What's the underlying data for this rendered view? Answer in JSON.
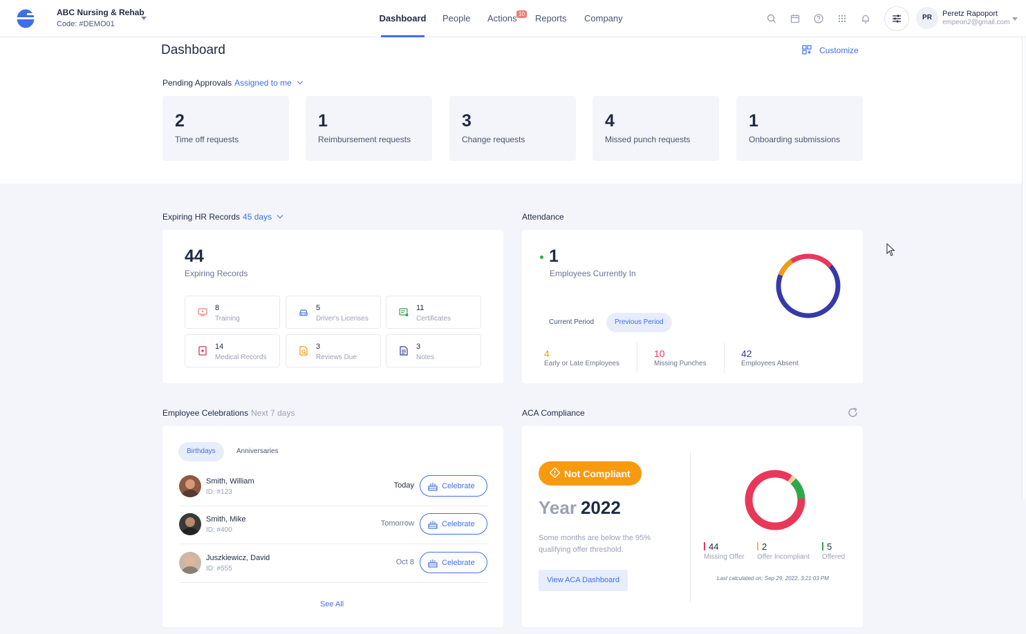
{
  "org": {
    "name": "ABC Nursing & Rehab",
    "code": "Code: #DEMO01"
  },
  "nav": [
    {
      "label": "Dashboard"
    },
    {
      "label": "People"
    },
    {
      "label": "Actions",
      "badge": "10"
    },
    {
      "label": "Reports"
    },
    {
      "label": "Company"
    }
  ],
  "top_icons": [
    "search-icon",
    "calendar-icon",
    "help-icon",
    "apps-grid-icon",
    "bell-icon",
    "settings-sliders-icon"
  ],
  "user": {
    "initials": "PR",
    "name": "Peretz Rapoport",
    "email": "empeon2@gmail.com"
  },
  "page": {
    "title": "Dashboard",
    "customize": "Customize"
  },
  "pending": {
    "label": "Pending Approvals",
    "filter": "Assigned to me",
    "cards": [
      {
        "num": "2",
        "label": "Time off requests"
      },
      {
        "num": "1",
        "label": "Reimbursement requests"
      },
      {
        "num": "3",
        "label": "Change requests"
      },
      {
        "num": "4",
        "label": "Missed punch requests"
      },
      {
        "num": "1",
        "label": "Onboarding submissions"
      }
    ]
  },
  "expiring": {
    "label": "Expiring HR Records",
    "filter": "45 days",
    "total": "44",
    "total_label": "Expiring Records",
    "tiles": [
      {
        "num": "8",
        "label": "Training",
        "icon": "training-icon"
      },
      {
        "num": "5",
        "label": "Driver's Licenses",
        "icon": "car-icon"
      },
      {
        "num": "11",
        "label": "Certificates",
        "icon": "certificate-icon"
      },
      {
        "num": "14",
        "label": "Medical Records",
        "icon": "medical-icon"
      },
      {
        "num": "3",
        "label": "Reviews Due",
        "icon": "review-icon"
      },
      {
        "num": "3",
        "label": "Notes",
        "icon": "notes-icon"
      }
    ]
  },
  "attendance": {
    "label": "Attendance",
    "current_in": "1",
    "current_in_label": "Employees Currently In",
    "tabs": [
      {
        "label": "Current Period"
      },
      {
        "label": "Previous Period"
      }
    ],
    "stats": [
      {
        "num": "4",
        "label": "Early or Late Employees",
        "color": "#f79a0e"
      },
      {
        "num": "10",
        "label": "Missing Punches",
        "color": "#e8385a"
      },
      {
        "num": "42",
        "label": "Employees Absent",
        "color": "#3639a8"
      }
    ]
  },
  "celebrations": {
    "label": "Employee Celebrations",
    "filter": "Next 7 days",
    "tabs": [
      {
        "label": "Birthdays"
      },
      {
        "label": "Anniversaries"
      }
    ],
    "rows": [
      {
        "name": "Smith, William",
        "id": "ID: #123",
        "when": "Today",
        "action": "Celebrate"
      },
      {
        "name": "Smith, Mike",
        "id": "ID: #400",
        "when": "Tomorrow",
        "action": "Celebrate"
      },
      {
        "name": "Juszkiewicz, David",
        "id": "ID: #555",
        "when": "Oct 8",
        "action": "Celebrate"
      }
    ],
    "see_all": "See All"
  },
  "aca": {
    "label": "ACA Compliance",
    "status": "Not Compliant",
    "year_prefix": "Year",
    "year": "2022",
    "desc": "Some months are below the 95% qualifying offer threshold.",
    "button": "View ACA Dashboard",
    "stats": [
      {
        "num": "44",
        "label": "Missing Offer",
        "color": "#e8385a"
      },
      {
        "num": "2",
        "label": "Offer Incompliant",
        "color": "#f5b94a"
      },
      {
        "num": "5",
        "label": "Offered",
        "color": "#2ea84a"
      }
    ],
    "last_calc": "Last calculated on: Sep 29, 2022, 3:21:03 PM"
  }
}
